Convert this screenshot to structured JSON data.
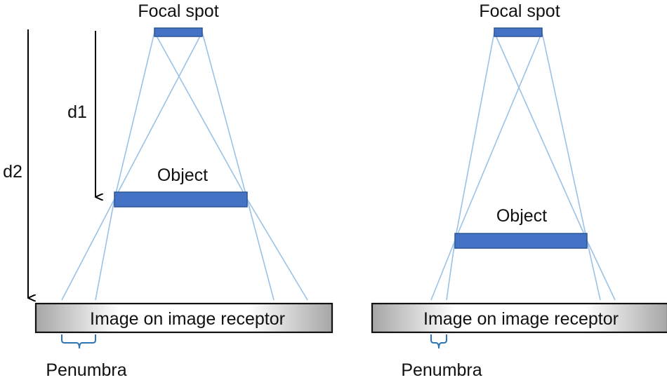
{
  "left_diagram": {
    "focal_spot_label": "Focal spot",
    "object_label": "Object",
    "receptor_label": "Image on image receptor",
    "penumbra_label": "Penumbra",
    "distance_labels": {
      "d1": "d1",
      "d2": "d2"
    }
  },
  "right_diagram": {
    "focal_spot_label": "Focal spot",
    "object_label": "Object",
    "receptor_label": "Image on image receptor",
    "penumbra_label": "Penumbra"
  },
  "colors": {
    "bar_fill": "#4472c4",
    "bar_stroke": "#2f5597",
    "ray": "#9bc2e6",
    "brace": "#2e75b6",
    "receptor_gradient_edge": "#a6a6a6",
    "receptor_gradient_center": "#ffffff"
  }
}
